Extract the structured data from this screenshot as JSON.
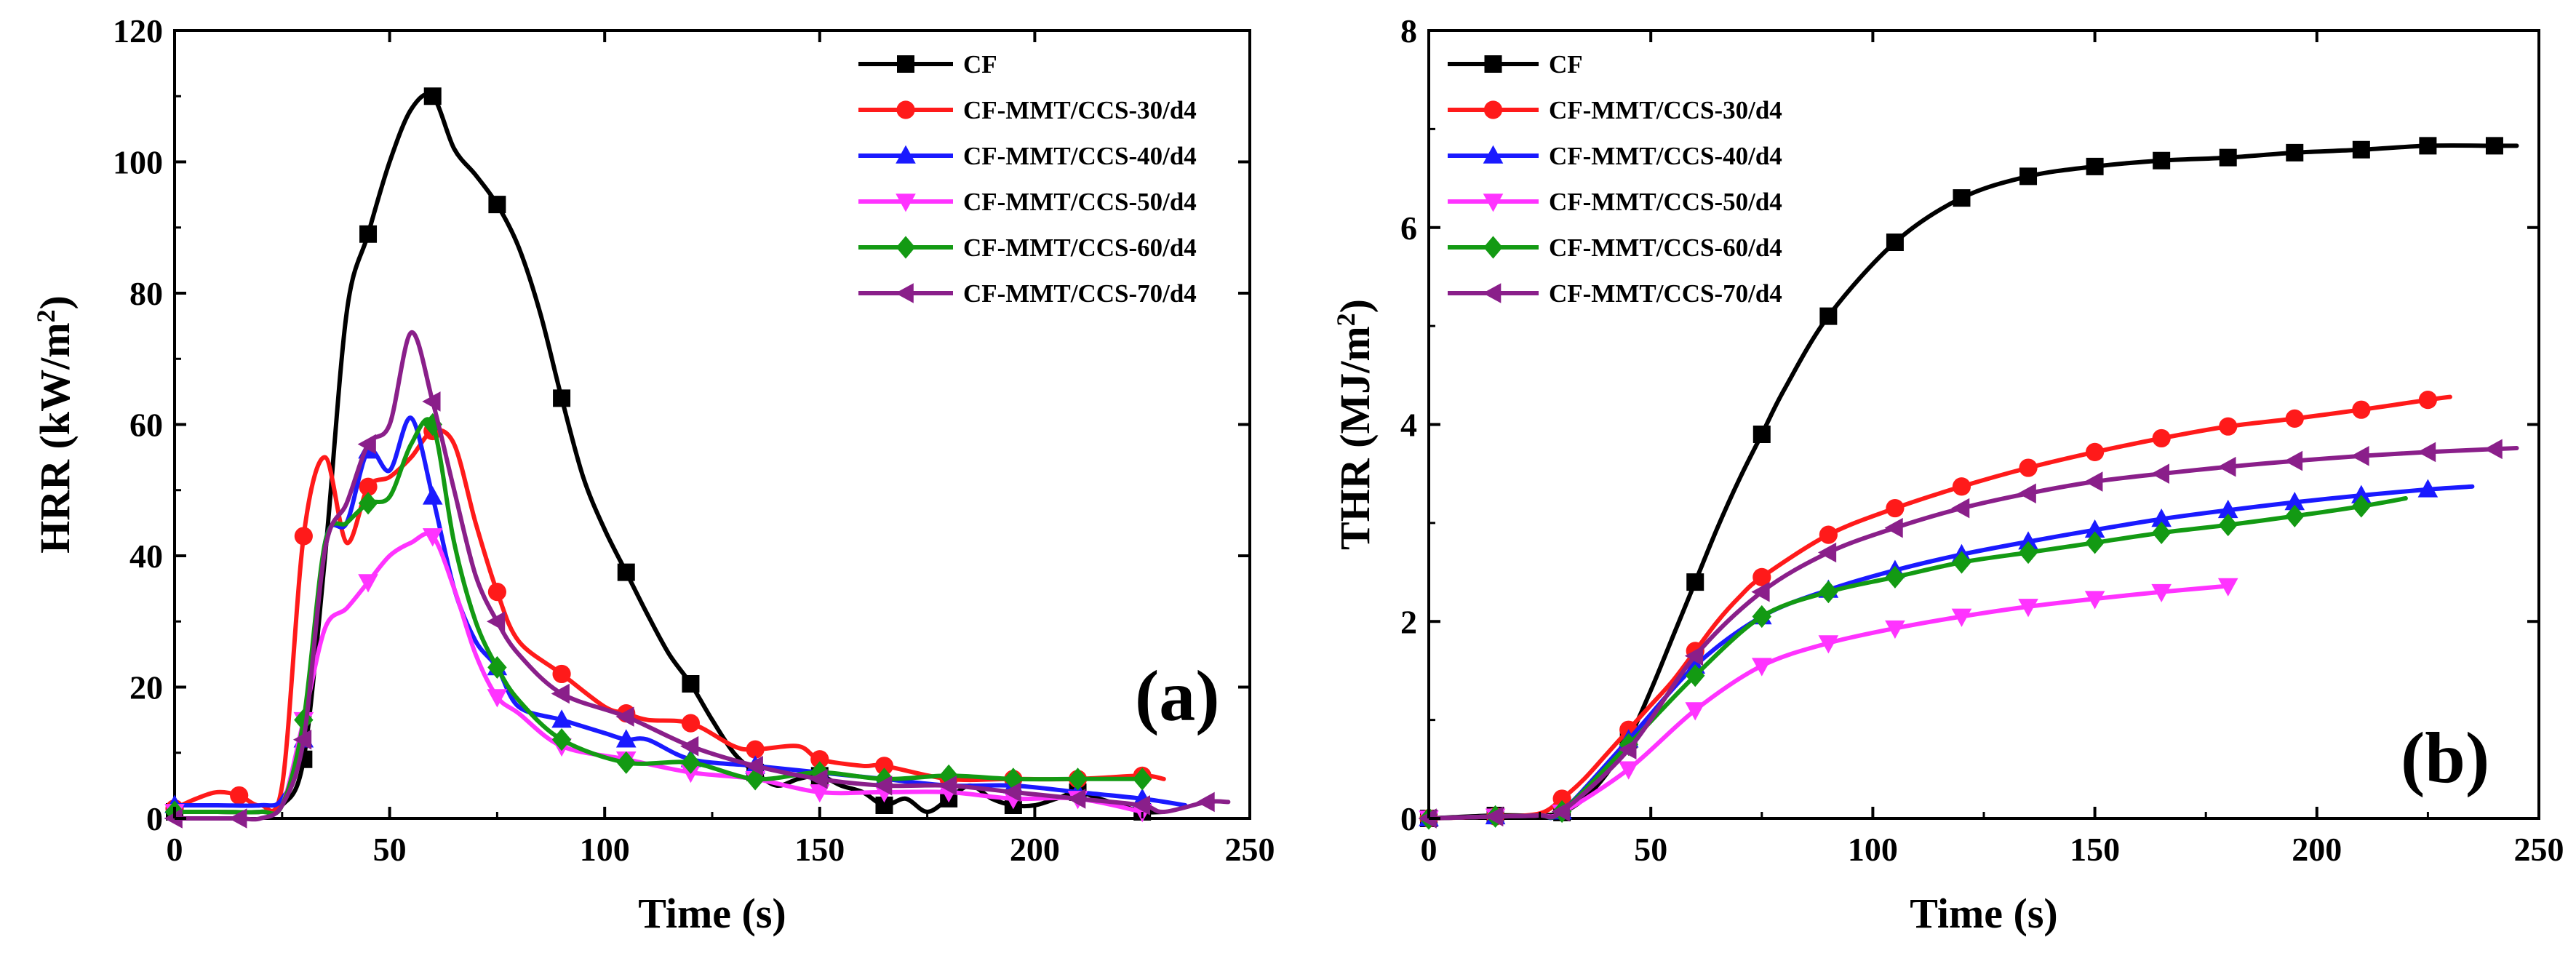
{
  "series_styles": [
    {
      "name": "CF",
      "color": "#000000",
      "marker": "square"
    },
    {
      "name": "CF-MMT/CCS-30/d4",
      "color": "#ff1a1a",
      "marker": "circle"
    },
    {
      "name": "CF-MMT/CCS-40/d4",
      "color": "#1a1aff",
      "marker": "triangle-up"
    },
    {
      "name": "CF-MMT/CCS-50/d4",
      "color": "#ff33ff",
      "marker": "triangle-down"
    },
    {
      "name": "CF-MMT/CCS-60/d4",
      "color": "#139a13",
      "marker": "diamond"
    },
    {
      "name": "CF-MMT/CCS-70/d4",
      "color": "#8a1f8a",
      "marker": "triangle-left"
    }
  ],
  "chart_data": [
    {
      "type": "line",
      "panel_label": "(a)",
      "title": "",
      "xlabel": "Time (s)",
      "ylabel": "HRR (kW/m",
      "ylabel_sup": "2",
      "ylabel_close": ")",
      "xlim": [
        0,
        250
      ],
      "ylim": [
        0,
        120
      ],
      "xticks": [
        0,
        50,
        100,
        150,
        200,
        250
      ],
      "yticks": [
        0,
        20,
        40,
        60,
        80,
        100,
        120
      ],
      "legend_position": "top-right",
      "series": [
        {
          "name": "CF",
          "x": [
            0,
            10,
            20,
            25,
            30,
            35,
            40,
            45,
            50,
            55,
            60,
            65,
            70,
            75,
            80,
            85,
            90,
            95,
            100,
            105,
            110,
            115,
            120,
            125,
            130,
            135,
            140,
            145,
            150,
            155,
            160,
            165,
            170,
            175,
            180,
            185,
            190,
            195,
            200,
            205,
            210,
            215,
            220,
            225,
            230
          ],
          "y": [
            1,
            1,
            1,
            2,
            9,
            40,
            77,
            89,
            100,
            108,
            110,
            102,
            98,
            93.5,
            87,
            77,
            64,
            52,
            44,
            37.5,
            31,
            25,
            20.5,
            15,
            10,
            7,
            5,
            6,
            6.5,
            5,
            4,
            2,
            3,
            1,
            3,
            5,
            3,
            2,
            2,
            3,
            4,
            3,
            2,
            1,
            1
          ]
        },
        {
          "name": "CF-MMT/CCS-30/d4",
          "x": [
            0,
            5,
            10,
            15,
            20,
            25,
            30,
            35,
            40,
            45,
            50,
            55,
            60,
            65,
            70,
            75,
            80,
            90,
            100,
            105,
            110,
            120,
            130,
            135,
            145,
            150,
            160,
            165,
            180,
            195,
            210,
            225,
            230
          ],
          "y": [
            1.5,
            3,
            4,
            3.5,
            2,
            5,
            43,
            55,
            42,
            50.5,
            52,
            55,
            59,
            57,
            45,
            34.5,
            27,
            22,
            17,
            16,
            15,
            14.5,
            11,
            10.5,
            11,
            9,
            8,
            8,
            6,
            6,
            6,
            6.5,
            6
          ]
        },
        {
          "name": "CF-MMT/CCS-40/d4",
          "x": [
            0,
            10,
            20,
            25,
            30,
            35,
            40,
            45,
            50,
            55,
            60,
            65,
            70,
            75,
            80,
            90,
            100,
            105,
            110,
            120,
            135,
            150,
            165,
            180,
            195,
            210,
            225,
            235
          ],
          "y": [
            2,
            2,
            2,
            3,
            12,
            42,
            45,
            56,
            53,
            61,
            49,
            35,
            27,
            23,
            17,
            15,
            13,
            12,
            12,
            9,
            8,
            7,
            6,
            5,
            5,
            4,
            3,
            2
          ]
        },
        {
          "name": "CF-MMT/CCS-50/d4",
          "x": [
            0,
            10,
            20,
            25,
            30,
            35,
            40,
            45,
            50,
            55,
            60,
            65,
            70,
            75,
            80,
            90,
            105,
            120,
            135,
            150,
            165,
            180,
            195,
            210,
            225
          ],
          "y": [
            1,
            1,
            1,
            2,
            15,
            29,
            32,
            36,
            40,
            42,
            43,
            35,
            25,
            18.5,
            16,
            11,
            9,
            7,
            6,
            4,
            4,
            4,
            3,
            3,
            1
          ]
        },
        {
          "name": "CF-MMT/CCS-60/d4",
          "x": [
            0,
            10,
            20,
            25,
            30,
            35,
            40,
            45,
            50,
            55,
            60,
            65,
            70,
            75,
            80,
            90,
            105,
            120,
            135,
            150,
            165,
            180,
            195,
            210,
            225
          ],
          "y": [
            1,
            1,
            1,
            2,
            15,
            42,
            45,
            48,
            49,
            57,
            60,
            42,
            30,
            23,
            18,
            12,
            8.5,
            8.5,
            6,
            7,
            6,
            6.5,
            6,
            6,
            6
          ]
        },
        {
          "name": "CF-MMT/CCS-70/d4",
          "x": [
            0,
            10,
            15,
            20,
            25,
            30,
            35,
            40,
            45,
            50,
            55,
            60,
            65,
            70,
            75,
            80,
            90,
            105,
            120,
            135,
            150,
            165,
            180,
            195,
            210,
            225,
            230,
            240,
            245
          ],
          "y": [
            0,
            0,
            0,
            0,
            2,
            12,
            41,
            48,
            57,
            60,
            74,
            63.5,
            50,
            37,
            30,
            25,
            19,
            15.5,
            11,
            8,
            6,
            5,
            5,
            4,
            3,
            2,
            1,
            2.5,
            2.5
          ]
        }
      ]
    },
    {
      "type": "line",
      "panel_label": "(b)",
      "title": "",
      "xlabel": "Time (s)",
      "ylabel": "THR (MJ/m",
      "ylabel_sup": "2",
      "ylabel_close": ")",
      "xlim": [
        0,
        250
      ],
      "ylim": [
        0,
        8
      ],
      "xticks": [
        0,
        50,
        100,
        150,
        200,
        250
      ],
      "yticks": [
        0,
        2,
        4,
        6,
        8
      ],
      "legend_position": "top-left",
      "series": [
        {
          "name": "CF",
          "x": [
            0,
            15,
            25,
            30,
            35,
            40,
            45,
            50,
            55,
            60,
            65,
            70,
            75,
            80,
            90,
            105,
            120,
            135,
            150,
            165,
            180,
            195,
            210,
            225,
            240,
            245
          ],
          "y": [
            0,
            0.03,
            0.03,
            0.06,
            0.2,
            0.45,
            0.8,
            1.3,
            1.85,
            2.4,
            2.95,
            3.45,
            3.9,
            4.35,
            5.1,
            5.85,
            6.3,
            6.52,
            6.62,
            6.68,
            6.71,
            6.76,
            6.79,
            6.83,
            6.83,
            6.83
          ]
        },
        {
          "name": "CF-MMT/CCS-30/d4",
          "x": [
            0,
            15,
            25,
            30,
            35,
            40,
            45,
            50,
            55,
            60,
            65,
            70,
            75,
            90,
            105,
            120,
            135,
            150,
            165,
            180,
            195,
            210,
            225,
            230
          ],
          "y": [
            0,
            0.02,
            0.05,
            0.2,
            0.4,
            0.65,
            0.9,
            1.15,
            1.4,
            1.7,
            2.0,
            2.25,
            2.45,
            2.88,
            3.15,
            3.37,
            3.56,
            3.72,
            3.86,
            3.98,
            4.06,
            4.15,
            4.25,
            4.28
          ]
        },
        {
          "name": "CF-MMT/CCS-40/d4",
          "x": [
            0,
            15,
            25,
            30,
            45,
            60,
            75,
            90,
            105,
            120,
            135,
            150,
            165,
            180,
            195,
            210,
            225,
            235
          ],
          "y": [
            0,
            0.02,
            0.03,
            0.07,
            0.8,
            1.55,
            2.05,
            2.32,
            2.52,
            2.68,
            2.81,
            2.93,
            3.04,
            3.13,
            3.21,
            3.28,
            3.34,
            3.37
          ]
        },
        {
          "name": "CF-MMT/CCS-50/d4",
          "x": [
            0,
            15,
            25,
            30,
            45,
            60,
            75,
            90,
            105,
            120,
            135,
            150,
            165,
            180
          ],
          "y": [
            0,
            0.02,
            0.03,
            0.06,
            0.5,
            1.1,
            1.55,
            1.78,
            1.93,
            2.05,
            2.15,
            2.23,
            2.3,
            2.36
          ]
        },
        {
          "name": "CF-MMT/CCS-60/d4",
          "x": [
            0,
            15,
            25,
            30,
            45,
            60,
            75,
            90,
            105,
            120,
            135,
            150,
            165,
            180,
            195,
            210,
            220
          ],
          "y": [
            0,
            0.02,
            0.03,
            0.07,
            0.75,
            1.45,
            2.05,
            2.3,
            2.45,
            2.6,
            2.7,
            2.8,
            2.9,
            2.98,
            3.07,
            3.17,
            3.25
          ]
        },
        {
          "name": "CF-MMT/CCS-70/d4",
          "x": [
            0,
            15,
            25,
            30,
            45,
            60,
            75,
            90,
            105,
            120,
            135,
            150,
            165,
            180,
            195,
            210,
            225,
            240,
            245
          ],
          "y": [
            0,
            0.02,
            0.03,
            0.07,
            0.7,
            1.65,
            2.3,
            2.7,
            2.95,
            3.15,
            3.3,
            3.42,
            3.5,
            3.57,
            3.63,
            3.68,
            3.72,
            3.75,
            3.76
          ]
        }
      ]
    }
  ]
}
